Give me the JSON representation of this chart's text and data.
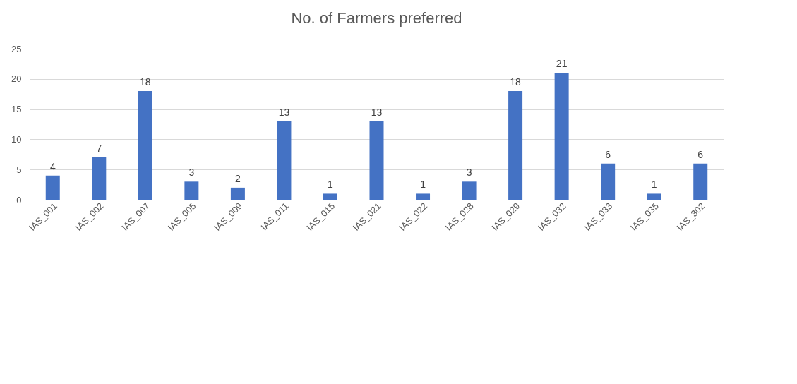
{
  "chart_data": {
    "type": "bar",
    "title": "No. of Farmers preferred",
    "categories": [
      "IAS_001",
      "IAS_002",
      "IAS_007",
      "IAS_005",
      "IAS_009",
      "IAS_011",
      "IAS_015",
      "IAS_021",
      "IAS_022",
      "IAS_028",
      "IAS_029",
      "IAS_032",
      "IAS_033",
      "IAS_035",
      "IAS_302"
    ],
    "values": [
      4,
      7,
      18,
      3,
      2,
      13,
      1,
      13,
      1,
      3,
      18,
      21,
      6,
      1,
      6
    ],
    "color": "#4472c4",
    "ylim": [
      0,
      25
    ],
    "yticks": [
      0,
      5,
      10,
      15,
      20,
      25
    ],
    "grid": "y",
    "data_labels": true
  }
}
